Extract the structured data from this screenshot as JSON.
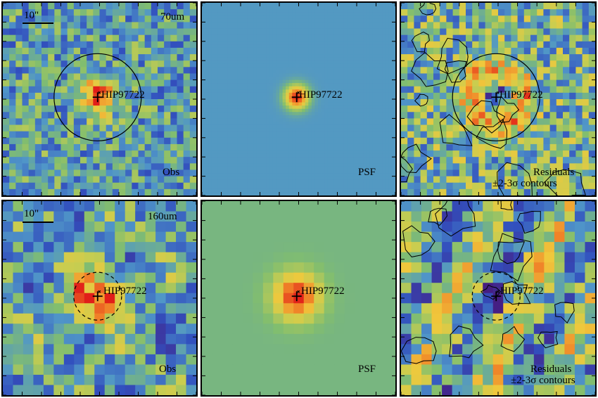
{
  "panels": [
    {
      "id": "top-obs",
      "band": "70um",
      "scale": "10\"",
      "source": "HIP97722",
      "label": "Obs",
      "aperture": "solid",
      "kind": "obs",
      "seed": 11,
      "grid": 30
    },
    {
      "id": "top-psf",
      "source": "HIP97722",
      "label": "PSF",
      "kind": "psf",
      "grid": 60
    },
    {
      "id": "top-res",
      "source": "HIP97722",
      "label": "Residuals",
      "label2": "±2-3σ contours",
      "aperture": "solid",
      "kind": "res",
      "seed": 23,
      "grid": 30
    },
    {
      "id": "bot-obs",
      "band": "160um",
      "scale": "10\"",
      "source": "HIP97722",
      "label": "Obs",
      "aperture": "dashed",
      "kind": "obs",
      "seed": 37,
      "grid": 19
    },
    {
      "id": "bot-psf",
      "source": "HIP97722",
      "label": "PSF",
      "kind": "psf2",
      "grid": 19
    },
    {
      "id": "bot-res",
      "source": "HIP97722",
      "label": "Residuals",
      "label2": "±2-3σ contours",
      "aperture": "dashed",
      "kind": "res",
      "seed": 53,
      "grid": 19
    }
  ],
  "colors": {
    "low": "#3c2a8c",
    "mid": "#8fc46a",
    "high": "#e8281e",
    "bg": "#4a74b8"
  }
}
